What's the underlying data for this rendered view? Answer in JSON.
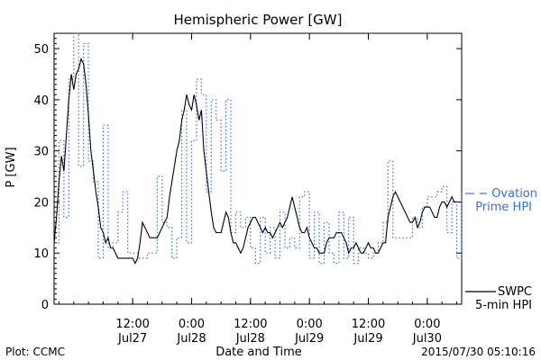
{
  "chart_data": {
    "type": "line",
    "title": "Hemispheric Power [GW]",
    "ylabel": "P [GW]",
    "xlabel": "Date and Time",
    "ylim": [
      0,
      53
    ],
    "yticks": [
      0,
      10,
      20,
      30,
      40,
      50
    ],
    "xlim": [
      "2015-07-26 20:00",
      "2015-07-30 07:00"
    ],
    "xticks": [
      {
        "time": "2015-07-27 12:00",
        "label1": "12:00",
        "label2": "Jul27"
      },
      {
        "time": "2015-07-28 00:00",
        "label1": "0:00",
        "label2": "Jul28"
      },
      {
        "time": "2015-07-28 12:00",
        "label1": "12:00",
        "label2": "Jul28"
      },
      {
        "time": "2015-07-29 00:00",
        "label1": "0:00",
        "label2": "Jul29"
      },
      {
        "time": "2015-07-29 12:00",
        "label1": "12:00",
        "label2": "Jul29"
      },
      {
        "time": "2015-07-30 00:00",
        "label1": "0:00",
        "label2": "Jul30"
      }
    ],
    "footer_left": "Plot: CCMC",
    "footer_right": "2015/07/30 05:10:16",
    "series": [
      {
        "name": "SWPC",
        "name_line2": "5-min HPI",
        "color": "#000000",
        "style": "solid",
        "x_hours_from_jul27": [
          -4,
          -3.5,
          -3,
          -2.5,
          -2,
          -1.5,
          -1,
          -0.5,
          0,
          0.5,
          1,
          1.5,
          2,
          2.5,
          3,
          3.5,
          4,
          4.5,
          5,
          5.5,
          6,
          6.5,
          7,
          7.5,
          8,
          8.5,
          9,
          9.5,
          10,
          10.5,
          11,
          11.5,
          12,
          12.5,
          13,
          13.5,
          14,
          14.5,
          15,
          15.5,
          16,
          16.5,
          17,
          17.5,
          18,
          18.5,
          19,
          19.5,
          20,
          20.5,
          21,
          21.5,
          22,
          22.5,
          23,
          23.5,
          24,
          24.5,
          25,
          25.5,
          26,
          26.5,
          27,
          27.5,
          28,
          28.5,
          29,
          29.5,
          30,
          30.5,
          31,
          31.5,
          32,
          32.5,
          33,
          33.5,
          34,
          34.5,
          35,
          35.5,
          36,
          36.5,
          37,
          37.5,
          38,
          38.5,
          39,
          39.5,
          40,
          40.5,
          41,
          41.5,
          42,
          42.5,
          43,
          43.5,
          44,
          44.5,
          45,
          45.5,
          46,
          46.5,
          47,
          47.5,
          48,
          48.5,
          49,
          49.5,
          50,
          50.5,
          51,
          51.5,
          52,
          52.5,
          53,
          53.5,
          54,
          54.5,
          55,
          55.5,
          56,
          56.5,
          57,
          57.5,
          58,
          58.5,
          59,
          59.5,
          60,
          60.5,
          61,
          61.5,
          62,
          62.5,
          63,
          63.5,
          64,
          64.5,
          65,
          65.5,
          66,
          66.5,
          67,
          67.5,
          68,
          68.5,
          69,
          69.5,
          70,
          70.5,
          71,
          71.5,
          72,
          72.5,
          73,
          73.5,
          74,
          74.5,
          75,
          75.5,
          76,
          76.5,
          77,
          77.5,
          78,
          78.5,
          79
        ],
        "values": [
          12,
          17,
          24,
          29,
          26,
          33,
          40,
          45,
          42,
          45,
          46,
          48,
          47,
          43,
          37,
          30,
          26,
          22,
          19,
          15,
          14,
          12,
          13,
          11,
          11,
          10,
          9,
          9,
          9,
          9,
          9,
          9,
          9,
          8,
          9,
          12,
          16,
          15,
          14,
          13,
          13,
          13,
          13,
          14,
          15,
          16,
          17,
          21,
          24,
          27,
          30,
          32,
          36,
          38,
          41,
          39,
          38,
          41,
          39,
          36,
          38,
          30,
          26,
          22,
          18,
          15,
          14,
          14,
          14,
          16,
          18,
          17,
          14,
          12,
          12,
          11,
          10,
          11,
          13,
          15,
          16,
          17,
          17,
          16,
          15,
          14,
          15,
          14,
          14,
          13,
          14,
          15,
          16,
          15,
          16,
          17,
          19,
          21,
          19,
          17,
          15,
          14,
          14,
          15,
          13,
          12,
          11,
          11,
          10,
          10,
          10,
          12,
          13,
          13,
          13,
          14,
          14,
          14,
          13,
          12,
          10,
          11,
          11,
          12,
          11,
          10,
          10,
          11,
          12,
          11,
          11,
          10,
          10,
          11,
          12,
          12,
          17,
          19,
          21,
          22,
          21,
          20,
          19,
          18,
          17,
          16,
          16,
          17,
          15,
          16,
          18,
          19,
          19,
          19,
          18,
          17,
          17,
          19,
          20,
          20,
          19,
          20,
          21,
          20,
          20
        ],
        "legend": "bottom-right"
      },
      {
        "name": "Ovation",
        "name_line2": "Prime HPI",
        "color": "#3a6fd8",
        "style": "step-dotted",
        "x_hours_from_jul27": [
          -4,
          -3,
          -2,
          -1,
          0,
          1,
          2,
          3,
          4,
          5,
          6,
          7,
          8,
          9,
          10,
          11,
          12,
          13,
          14,
          15,
          16,
          17,
          18,
          19,
          20,
          21,
          22,
          23,
          24,
          25,
          26,
          27,
          28,
          29,
          30,
          31,
          32,
          33,
          34,
          35,
          36,
          37,
          38,
          39,
          40,
          41,
          42,
          43,
          44,
          45,
          46,
          47,
          48,
          49,
          50,
          51,
          52,
          53,
          54,
          55,
          56,
          57,
          58,
          59,
          60,
          61,
          62,
          63,
          64,
          65,
          66,
          67,
          68,
          69,
          70,
          71,
          72,
          73,
          74,
          75,
          76,
          77,
          78,
          79
        ],
        "values": [
          12,
          32,
          17,
          44,
          53,
          27,
          51,
          28,
          24,
          9,
          35,
          11,
          12,
          18,
          22,
          10,
          10,
          9,
          9,
          10,
          10,
          25,
          16,
          15,
          9,
          13,
          38,
          12,
          32,
          44,
          41,
          22,
          40,
          36,
          26,
          40,
          14,
          18,
          15,
          17,
          11,
          8,
          17,
          10,
          15,
          9,
          18,
          11,
          13,
          11,
          21,
          22,
          9,
          18,
          8,
          16,
          10,
          8,
          18,
          9,
          17,
          8,
          11,
          10,
          9,
          10,
          12,
          16,
          28,
          13,
          13,
          13,
          13,
          17,
          15,
          19,
          21,
          21,
          22,
          23,
          14,
          20,
          9,
          22
        ],
        "legend": "right"
      }
    ]
  }
}
